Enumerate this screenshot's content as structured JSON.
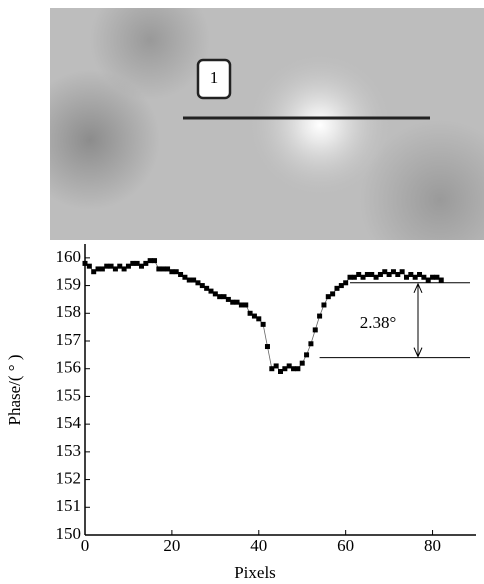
{
  "image_label": "1",
  "chart_data": {
    "type": "line",
    "xlabel": "Pixels",
    "ylabel": "Phase/( ° )",
    "xlim": [
      0,
      90
    ],
    "ylim": [
      150,
      160.5
    ],
    "xticks": [
      0,
      20,
      40,
      60,
      80
    ],
    "yticks": [
      150,
      151,
      152,
      153,
      154,
      155,
      156,
      157,
      158,
      159,
      160
    ],
    "annotation": "2.38°",
    "reference_lines": [
      159.1,
      156.4
    ],
    "series": [
      {
        "color": "#000000",
        "x": [
          0,
          1,
          2,
          3,
          4,
          5,
          6,
          7,
          8,
          9,
          10,
          11,
          12,
          13,
          14,
          15,
          16,
          17,
          18,
          19,
          20,
          21,
          22,
          23,
          24,
          25,
          26,
          27,
          28,
          29,
          30,
          31,
          32,
          33,
          34,
          35,
          36,
          37,
          38,
          39,
          40,
          41,
          42,
          43,
          44,
          45,
          46,
          47,
          48,
          49,
          50,
          51,
          52,
          53,
          54,
          55,
          56,
          57,
          58,
          59,
          60,
          61,
          62,
          63,
          64,
          65,
          66,
          67,
          68,
          69,
          70,
          71,
          72,
          73,
          74,
          75,
          76,
          77,
          78,
          79,
          80,
          81,
          82
        ],
        "values": [
          159.8,
          159.7,
          159.5,
          159.6,
          159.6,
          159.7,
          159.7,
          159.6,
          159.7,
          159.6,
          159.7,
          159.8,
          159.8,
          159.7,
          159.8,
          159.9,
          159.9,
          159.6,
          159.6,
          159.6,
          159.5,
          159.5,
          159.4,
          159.3,
          159.2,
          159.2,
          159.1,
          159.0,
          158.9,
          158.8,
          158.7,
          158.6,
          158.6,
          158.5,
          158.4,
          158.4,
          158.3,
          158.3,
          158.0,
          157.9,
          157.8,
          157.6,
          156.8,
          156.0,
          156.1,
          155.9,
          156.0,
          156.1,
          156.0,
          156.0,
          156.2,
          156.5,
          156.9,
          157.4,
          157.9,
          158.3,
          158.6,
          158.7,
          158.9,
          159.0,
          159.1,
          159.3,
          159.3,
          159.4,
          159.3,
          159.4,
          159.4,
          159.3,
          159.4,
          159.5,
          159.4,
          159.5,
          159.4,
          159.5,
          159.3,
          159.4,
          159.3,
          159.4,
          159.3,
          159.2,
          159.3,
          159.3,
          159.2
        ]
      }
    ]
  }
}
